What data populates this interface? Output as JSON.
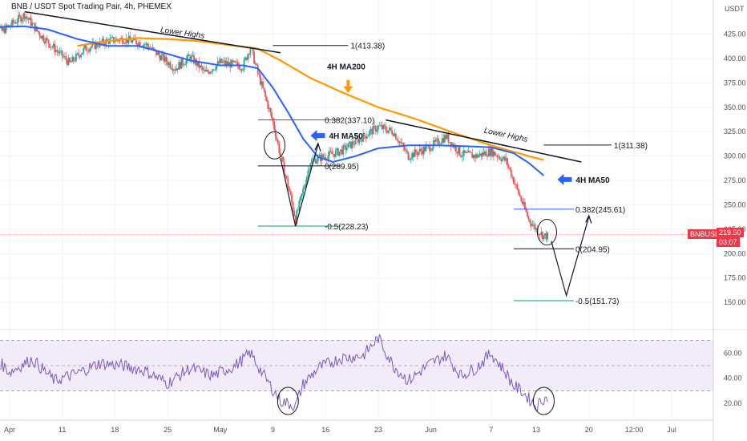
{
  "header": {
    "title": "BNB / USDT Spot Trading Pair, 4h, PHEMEX",
    "currency": "USDT"
  },
  "colors": {
    "up": "#26a69a",
    "down": "#ef5350",
    "ma50": "#2962ff",
    "ma200": "#ff9800",
    "rsi": "#7e57c2",
    "rsi_band": "#ede7f6",
    "fib_blue": "#2962ff",
    "fib_green": "#089981",
    "price_badge": "#f23645"
  },
  "price_badge": {
    "symbol": "BNBUSDT",
    "price": "219.50",
    "countdown": "03:07"
  },
  "chart_data": [
    {
      "type": "candlestick",
      "title": "BNB / USDT Spot Trading Pair, 4h, PHEMEX",
      "ylabel": "USDT",
      "ylim": [
        123,
        460
      ],
      "y_ticks": [
        150,
        175,
        200,
        225,
        250,
        275,
        300,
        325,
        350,
        375,
        400,
        425
      ],
      "y_tick_labels": [
        "150.00",
        "175.00",
        "200.00",
        "225.00",
        "250.00",
        "275.00",
        "300.00",
        "325.00",
        "350.00",
        "375.00",
        "400.00",
        "425.00"
      ],
      "x_ticks": [
        {
          "label": "Apr",
          "date": "2022-04-04"
        },
        {
          "label": "11",
          "date": "2022-04-11"
        },
        {
          "label": "18",
          "date": "2022-04-18"
        },
        {
          "label": "25",
          "date": "2022-04-25"
        },
        {
          "label": "May",
          "date": "2022-05-02"
        },
        {
          "label": "9",
          "date": "2022-05-09"
        },
        {
          "label": "16",
          "date": "2022-05-16"
        },
        {
          "label": "23",
          "date": "2022-05-23"
        },
        {
          "label": "Jun",
          "date": "2022-05-30"
        },
        {
          "label": "7",
          "date": "2022-06-07"
        },
        {
          "label": "13",
          "date": "2022-06-13"
        },
        {
          "label": "20",
          "date": "2022-06-20"
        },
        {
          "label": "12:00",
          "date": "2022-06-26"
        },
        {
          "label": "Jul",
          "date": "2022-07-01"
        }
      ],
      "price_anchors": [
        {
          "date": "2022-04-01",
          "close": 438
        },
        {
          "date": "2022-04-03",
          "close": 428
        },
        {
          "date": "2022-04-06",
          "close": 445
        },
        {
          "date": "2022-04-08",
          "close": 425
        },
        {
          "date": "2022-04-12",
          "close": 395
        },
        {
          "date": "2022-04-14",
          "close": 410
        },
        {
          "date": "2022-04-17",
          "close": 418
        },
        {
          "date": "2022-04-19",
          "close": 420
        },
        {
          "date": "2022-04-22",
          "close": 415
        },
        {
          "date": "2022-04-26",
          "close": 390
        },
        {
          "date": "2022-04-28",
          "close": 402
        },
        {
          "date": "2022-04-30",
          "close": 385
        },
        {
          "date": "2022-05-02",
          "close": 396
        },
        {
          "date": "2022-05-05",
          "close": 392
        },
        {
          "date": "2022-05-06",
          "close": 412
        },
        {
          "date": "2022-05-07",
          "close": 385
        },
        {
          "date": "2022-05-08",
          "close": 360
        },
        {
          "date": "2022-05-09",
          "close": 335
        },
        {
          "date": "2022-05-10",
          "close": 300
        },
        {
          "date": "2022-05-11",
          "close": 270
        },
        {
          "date": "2022-05-12",
          "close": 235
        },
        {
          "date": "2022-05-13",
          "close": 265
        },
        {
          "date": "2022-05-14",
          "close": 295
        },
        {
          "date": "2022-05-16",
          "close": 300
        },
        {
          "date": "2022-05-18",
          "close": 305
        },
        {
          "date": "2022-05-20",
          "close": 315
        },
        {
          "date": "2022-05-23",
          "close": 330
        },
        {
          "date": "2022-05-25",
          "close": 325
        },
        {
          "date": "2022-05-27",
          "close": 300
        },
        {
          "date": "2022-05-30",
          "close": 310
        },
        {
          "date": "2022-06-01",
          "close": 320
        },
        {
          "date": "2022-06-03",
          "close": 302
        },
        {
          "date": "2022-06-05",
          "close": 300
        },
        {
          "date": "2022-06-07",
          "close": 305
        },
        {
          "date": "2022-06-09",
          "close": 295
        },
        {
          "date": "2022-06-10",
          "close": 275
        },
        {
          "date": "2022-06-11",
          "close": 255
        },
        {
          "date": "2022-06-12",
          "close": 235
        },
        {
          "date": "2022-06-13",
          "close": 225
        },
        {
          "date": "2022-06-14",
          "close": 218
        }
      ],
      "ma50_anchors": [
        {
          "date": "2022-04-01",
          "value": 432
        },
        {
          "date": "2022-04-06",
          "value": 433
        },
        {
          "date": "2022-04-09",
          "value": 430
        },
        {
          "date": "2022-04-13",
          "value": 420
        },
        {
          "date": "2022-04-17",
          "value": 413
        },
        {
          "date": "2022-04-21",
          "value": 413
        },
        {
          "date": "2022-04-24",
          "value": 407
        },
        {
          "date": "2022-04-28",
          "value": 398
        },
        {
          "date": "2022-05-02",
          "value": 393
        },
        {
          "date": "2022-05-05",
          "value": 393
        },
        {
          "date": "2022-05-07",
          "value": 390
        },
        {
          "date": "2022-05-09",
          "value": 370
        },
        {
          "date": "2022-05-11",
          "value": 345
        },
        {
          "date": "2022-05-13",
          "value": 318
        },
        {
          "date": "2022-05-15",
          "value": 299
        },
        {
          "date": "2022-05-17",
          "value": 294
        },
        {
          "date": "2022-05-20",
          "value": 300
        },
        {
          "date": "2022-05-23",
          "value": 308
        },
        {
          "date": "2022-05-27",
          "value": 311
        },
        {
          "date": "2022-05-31",
          "value": 311
        },
        {
          "date": "2022-06-04",
          "value": 310
        },
        {
          "date": "2022-06-07",
          "value": 309
        },
        {
          "date": "2022-06-10",
          "value": 303
        },
        {
          "date": "2022-06-12",
          "value": 293
        },
        {
          "date": "2022-06-14",
          "value": 280
        }
      ],
      "ma200_anchors": [
        {
          "date": "2022-04-13",
          "value": 413
        },
        {
          "date": "2022-04-17",
          "value": 418
        },
        {
          "date": "2022-04-21",
          "value": 421
        },
        {
          "date": "2022-04-25",
          "value": 420
        },
        {
          "date": "2022-04-29",
          "value": 418
        },
        {
          "date": "2022-05-03",
          "value": 414
        },
        {
          "date": "2022-05-07",
          "value": 410
        },
        {
          "date": "2022-05-10",
          "value": 398
        },
        {
          "date": "2022-05-14",
          "value": 380
        },
        {
          "date": "2022-05-18",
          "value": 366
        },
        {
          "date": "2022-05-23",
          "value": 350
        },
        {
          "date": "2022-05-28",
          "value": 338
        },
        {
          "date": "2022-06-02",
          "value": 324
        },
        {
          "date": "2022-06-07",
          "value": 311
        },
        {
          "date": "2022-06-12",
          "value": 300
        },
        {
          "date": "2022-06-14",
          "value": 296
        }
      ],
      "current_price": 219.5
    },
    {
      "type": "line",
      "indicator": "RSI",
      "ylim": [
        8,
        78
      ],
      "y_ticks": [
        20,
        40,
        60
      ],
      "y_tick_labels": [
        "20.00",
        "40.00",
        "60.00"
      ],
      "band": [
        30,
        70
      ],
      "midline": 50,
      "rsi_anchors": [
        {
          "date": "2022-04-01",
          "value": 62
        },
        {
          "date": "2022-04-04",
          "value": 45
        },
        {
          "date": "2022-04-07",
          "value": 55
        },
        {
          "date": "2022-04-10",
          "value": 38
        },
        {
          "date": "2022-04-13",
          "value": 44
        },
        {
          "date": "2022-04-16",
          "value": 52
        },
        {
          "date": "2022-04-19",
          "value": 50
        },
        {
          "date": "2022-04-22",
          "value": 46
        },
        {
          "date": "2022-04-25",
          "value": 36
        },
        {
          "date": "2022-04-28",
          "value": 48
        },
        {
          "date": "2022-05-01",
          "value": 42
        },
        {
          "date": "2022-05-04",
          "value": 50
        },
        {
          "date": "2022-05-06",
          "value": 60
        },
        {
          "date": "2022-05-08",
          "value": 40
        },
        {
          "date": "2022-05-10",
          "value": 22
        },
        {
          "date": "2022-05-12",
          "value": 18
        },
        {
          "date": "2022-05-13",
          "value": 35
        },
        {
          "date": "2022-05-15",
          "value": 48
        },
        {
          "date": "2022-05-18",
          "value": 56
        },
        {
          "date": "2022-05-21",
          "value": 58
        },
        {
          "date": "2022-05-23",
          "value": 72
        },
        {
          "date": "2022-05-25",
          "value": 50
        },
        {
          "date": "2022-05-27",
          "value": 38
        },
        {
          "date": "2022-05-30",
          "value": 52
        },
        {
          "date": "2022-06-01",
          "value": 58
        },
        {
          "date": "2022-06-03",
          "value": 42
        },
        {
          "date": "2022-06-05",
          "value": 48
        },
        {
          "date": "2022-06-07",
          "value": 60
        },
        {
          "date": "2022-06-09",
          "value": 44
        },
        {
          "date": "2022-06-10",
          "value": 34
        },
        {
          "date": "2022-06-11",
          "value": 30
        },
        {
          "date": "2022-06-12",
          "value": 24
        },
        {
          "date": "2022-06-13",
          "value": 18
        },
        {
          "date": "2022-06-14",
          "value": 24
        }
      ]
    }
  ],
  "annotations": {
    "lower_highs_1": "Lower Highs",
    "lower_highs_2": "Lower Highs",
    "ma200_label": "4H MA200",
    "ma50_label_1": "4H MA50",
    "ma50_label_2": "4H MA50",
    "fib1": {
      "level_1": "1(413.38)",
      "value_1": 413.38,
      "level_382": "0.382(337.10)",
      "value_382": 337.1,
      "level_0": "0(289.95)",
      "value_0": 289.95,
      "level_neg05": "-0.5(228.23)",
      "value_neg05": 228.23
    },
    "fib2": {
      "level_1": "1(311.38)",
      "value_1": 311.38,
      "level_382": "0.382(245.61)",
      "value_382": 245.61,
      "level_0": "0(204.95)",
      "value_0": 204.95,
      "level_neg05": "-0.5(151.73)",
      "value_neg05": 151.73
    }
  }
}
